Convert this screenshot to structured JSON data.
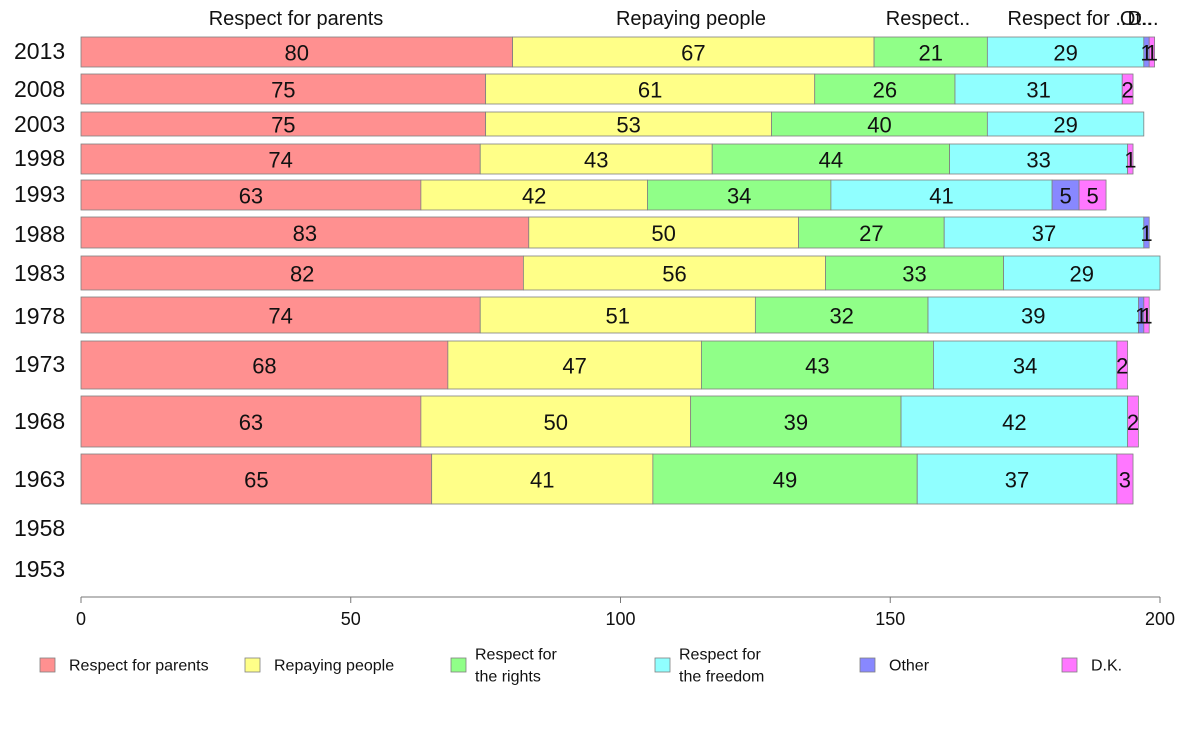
{
  "chart_data": {
    "type": "bar",
    "orientation": "horizontal",
    "stacked": true,
    "categories": [
      "2013",
      "2008",
      "2003",
      "1998",
      "1993",
      "1988",
      "1983",
      "1978",
      "1973",
      "1968",
      "1963",
      "1958",
      "1953"
    ],
    "series": [
      {
        "name": "Respect for parents",
        "color": "#ff9090",
        "values": [
          80,
          75,
          75,
          74,
          63,
          83,
          82,
          74,
          68,
          63,
          65,
          0,
          0
        ]
      },
      {
        "name": "Repaying people",
        "color": "#ffff88",
        "values": [
          67,
          61,
          53,
          43,
          42,
          50,
          56,
          51,
          47,
          50,
          41,
          0,
          0
        ]
      },
      {
        "name": "Respect for the rights",
        "color": "#90ff88",
        "values": [
          21,
          26,
          40,
          44,
          34,
          27,
          33,
          32,
          43,
          39,
          49,
          0,
          0
        ]
      },
      {
        "name": "Respect for the freedom",
        "color": "#90ffff",
        "values": [
          29,
          31,
          29,
          33,
          41,
          37,
          29,
          39,
          34,
          42,
          37,
          0,
          0
        ]
      },
      {
        "name": "Other",
        "color": "#8888ff",
        "values": [
          1,
          0,
          0,
          0,
          5,
          1,
          0,
          1,
          0,
          0,
          0,
          0,
          0
        ]
      },
      {
        "name": "D.K.",
        "color": "#ff77ff",
        "values": [
          1,
          2,
          0,
          1,
          5,
          0,
          0,
          1,
          2,
          2,
          3,
          0,
          0
        ]
      }
    ],
    "column_headers": [
      "Respect for parents",
      "Repaying people",
      "Respect..",
      "Respect for ..",
      "Ot..",
      "D..."
    ],
    "legend_labels": [
      [
        "Respect for parents"
      ],
      [
        "Repaying people"
      ],
      [
        "Respect for",
        "the rights"
      ],
      [
        "Respect for",
        "the freedom"
      ],
      [
        "Other"
      ],
      [
        "D.K."
      ]
    ],
    "xlim": [
      0,
      200
    ],
    "xticks": [
      0,
      50,
      100,
      150,
      200
    ],
    "legend_position": "bottom",
    "grid": false
  }
}
